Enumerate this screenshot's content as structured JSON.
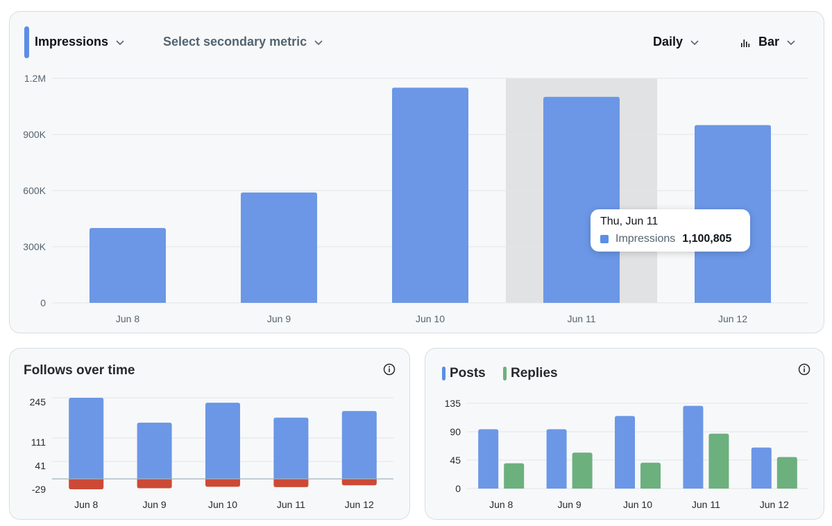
{
  "toolbar": {
    "primary_metric": "Impressions",
    "secondary_metric": "Select secondary metric",
    "interval": "Daily",
    "chart_type": "Bar"
  },
  "tooltip": {
    "date": "Thu, Jun 11",
    "metric": "Impressions",
    "value": "1,100,805"
  },
  "follows_card": {
    "title": "Follows over time"
  },
  "posts_card": {
    "legend": [
      "Posts",
      "Replies"
    ]
  },
  "colors": {
    "accent": "#5b8ee6",
    "bar_blue": "#6b97e6",
    "bar_green": "#6cb07e",
    "bar_red": "#cc4a35",
    "highlight": "#e1e2e4"
  },
  "chart_data": [
    {
      "type": "bar",
      "categories": [
        "Jun 8",
        "Jun 9",
        "Jun 10",
        "Jun 11",
        "Jun 12"
      ],
      "series": [
        {
          "name": "Impressions",
          "values": [
            400000,
            590000,
            1150000,
            1100805,
            950000
          ]
        }
      ],
      "yticks": [
        0,
        300000,
        600000,
        900000,
        1200000
      ],
      "ytick_labels": [
        "0",
        "300K",
        "600K",
        "900K",
        "1.2M"
      ],
      "ylim": [
        0,
        1200000
      ],
      "highlighted_category": "Jun 11",
      "grid": true
    },
    {
      "type": "bar",
      "title": "Follows over time",
      "categories": [
        "Jun 8",
        "Jun 9",
        "Jun 10",
        "Jun 11",
        "Jun 12"
      ],
      "series": [
        {
          "values": [
            245,
            170,
            230,
            185,
            205
          ]
        },
        {
          "values": [
            -29,
            -26,
            -22,
            -23,
            -18
          ]
        }
      ],
      "stacked": true,
      "yticks": [
        -29,
        41,
        111,
        245
      ],
      "ytick_labels": [
        "-29",
        "41",
        "111",
        "245"
      ],
      "ylim": [
        -29,
        245
      ],
      "grid": true
    },
    {
      "type": "bar",
      "categories": [
        "Jun 8",
        "Jun 9",
        "Jun 10",
        "Jun 11",
        "Jun 12"
      ],
      "series": [
        {
          "name": "Posts",
          "values": [
            94,
            94,
            115,
            131,
            65
          ]
        },
        {
          "name": "Replies",
          "values": [
            40,
            57,
            41,
            87,
            50
          ]
        }
      ],
      "yticks": [
        0,
        45,
        90,
        135
      ],
      "ytick_labels": [
        "0",
        "45",
        "90",
        "135"
      ],
      "ylim": [
        0,
        135
      ],
      "legend": "top-left",
      "grid": true
    }
  ]
}
